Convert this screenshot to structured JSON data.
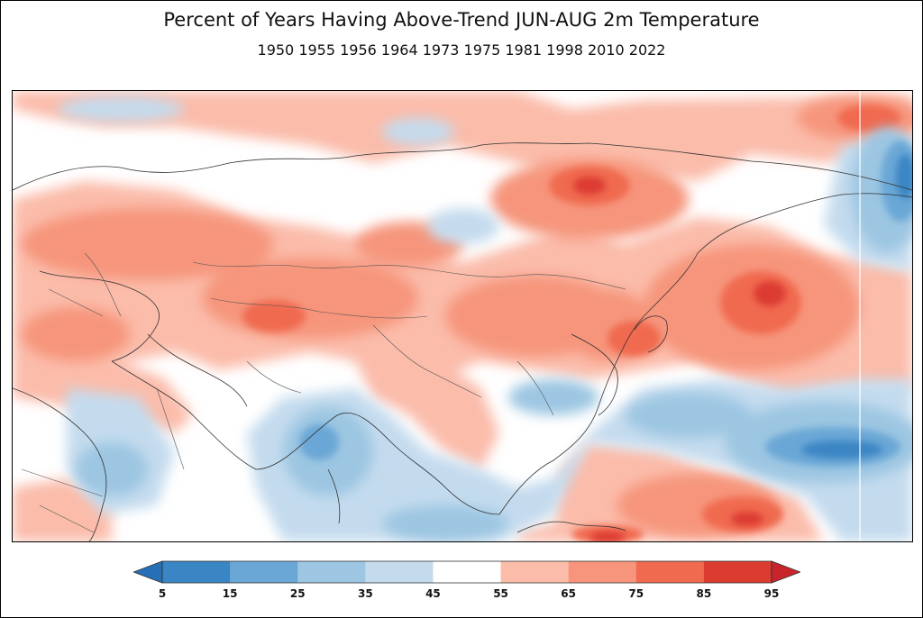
{
  "title": "Percent of Years Having Above-Trend JUN-AUG 2m Temperature",
  "subtitle": "1950 1955 1956 1964 1973 1975 1981 1998 2010 2022",
  "colorbar": {
    "ticks": [
      "5",
      "15",
      "25",
      "35",
      "45",
      "55",
      "65",
      "75",
      "85",
      "95"
    ],
    "colors": [
      "#2166ac",
      "#4393c3",
      "#92c5de",
      "#c6dbef",
      "#ffffff",
      "#fcbba1",
      "#fc9272",
      "#fb6a4a",
      "#de2d26",
      "#a50f15"
    ],
    "bins": [
      {
        "range": "5-15",
        "color": "#3a85c4"
      },
      {
        "range": "15-25",
        "color": "#6aa7d6"
      },
      {
        "range": "25-35",
        "color": "#9cc6e2"
      },
      {
        "range": "35-45",
        "color": "#c4dbee"
      },
      {
        "range": "45-55",
        "color": "#ffffff"
      },
      {
        "range": "55-65",
        "color": "#fbbcaa"
      },
      {
        "range": "65-75",
        "color": "#f6957c"
      },
      {
        "range": "75-85",
        "color": "#f06a50"
      },
      {
        "range": "85-95",
        "color": "#dc3b30"
      }
    ],
    "extend_low_color": "#2670b8",
    "extend_high_color": "#c8242b"
  }
}
